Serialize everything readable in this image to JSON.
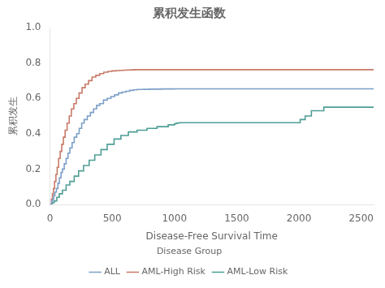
{
  "chart_data": {
    "type": "line",
    "line_style": "steps-post",
    "title": "累积发生函数",
    "xlabel": "Disease-Free Survival Time",
    "ylabel": "累积发生",
    "legend_title": "Disease Group",
    "legend": "bottom",
    "grid": false,
    "xlim": [
      0,
      2600
    ],
    "ylim": [
      0.0,
      1.0
    ],
    "xticks": [
      0,
      500,
      1000,
      1500,
      2000,
      2500
    ],
    "yticks": [
      {
        "value": 0.0,
        "label": "0.0"
      },
      0.2,
      0.4,
      0.6,
      0.8,
      {
        "value": 1.0,
        "label": "1.0"
      }
    ],
    "series": [
      {
        "name": "ALL",
        "color": "#7b9fc7",
        "x": [
          0,
          15,
          22,
          30,
          40,
          52,
          64,
          76,
          89,
          100,
          115,
          130,
          145,
          160,
          178,
          195,
          215,
          235,
          255,
          275,
          300,
          325,
          350,
          375,
          400,
          430,
          460,
          490,
          520,
          550,
          580,
          610,
          640,
          670,
          700,
          750,
          800,
          900,
          1000,
          1500,
          2000,
          2600
        ],
        "values": [
          0.0,
          0.02,
          0.03,
          0.05,
          0.07,
          0.09,
          0.12,
          0.15,
          0.18,
          0.2,
          0.23,
          0.26,
          0.29,
          0.32,
          0.35,
          0.38,
          0.4,
          0.43,
          0.46,
          0.48,
          0.5,
          0.52,
          0.54,
          0.56,
          0.57,
          0.59,
          0.6,
          0.61,
          0.62,
          0.63,
          0.635,
          0.64,
          0.645,
          0.648,
          0.65,
          0.651,
          0.652,
          0.653,
          0.654,
          0.654,
          0.654,
          0.654
        ]
      },
      {
        "name": "AML-High Risk",
        "color": "#c87a68",
        "x": [
          0,
          12,
          20,
          28,
          37,
          48,
          58,
          70,
          82,
          95,
          108,
          122,
          138,
          155,
          172,
          192,
          212,
          234,
          258,
          283,
          310,
          338,
          368,
          400,
          432,
          466,
          498,
          530,
          560,
          590,
          620,
          650,
          680,
          720,
          800,
          1000,
          1500,
          2000,
          2600
        ],
        "values": [
          0.0,
          0.03,
          0.06,
          0.09,
          0.13,
          0.17,
          0.21,
          0.26,
          0.3,
          0.34,
          0.38,
          0.42,
          0.46,
          0.5,
          0.54,
          0.57,
          0.6,
          0.63,
          0.66,
          0.68,
          0.7,
          0.72,
          0.73,
          0.74,
          0.748,
          0.752,
          0.755,
          0.757,
          0.758,
          0.759,
          0.76,
          0.761,
          0.762,
          0.762,
          0.762,
          0.762,
          0.762,
          0.762,
          0.762
        ]
      },
      {
        "name": "AML-Low Risk",
        "color": "#4d9e95",
        "x": [
          0,
          20,
          35,
          55,
          75,
          100,
          130,
          160,
          195,
          230,
          270,
          315,
          360,
          410,
          460,
          515,
          570,
          630,
          700,
          780,
          860,
          950,
          1000,
          1010,
          1020,
          1030,
          1040,
          1200,
          1400,
          1600,
          1800,
          2000,
          2010,
          2050,
          2100,
          2200,
          2600
        ],
        "values": [
          0.0,
          0.01,
          0.02,
          0.04,
          0.06,
          0.08,
          0.11,
          0.13,
          0.16,
          0.19,
          0.22,
          0.25,
          0.28,
          0.31,
          0.34,
          0.37,
          0.39,
          0.41,
          0.42,
          0.43,
          0.44,
          0.45,
          0.455,
          0.458,
          0.46,
          0.461,
          0.462,
          0.462,
          0.462,
          0.462,
          0.462,
          0.462,
          0.48,
          0.5,
          0.53,
          0.55,
          0.55
        ]
      }
    ]
  }
}
